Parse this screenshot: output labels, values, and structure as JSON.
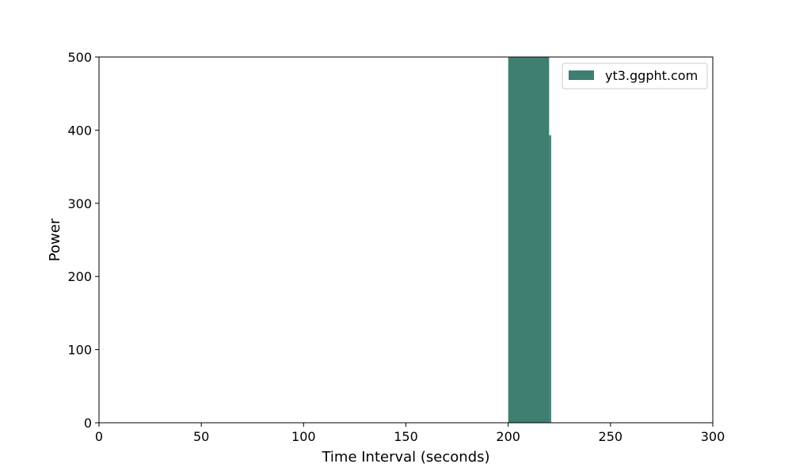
{
  "chart_data": {
    "type": "bar",
    "title": "",
    "xlabel": "Time Interval (seconds)",
    "ylabel": "Power",
    "xlim": [
      0,
      300
    ],
    "ylim": [
      0,
      500
    ],
    "xticks": [
      "0",
      "50",
      "100",
      "150",
      "200",
      "250",
      "300"
    ],
    "yticks": [
      "0",
      "100",
      "200",
      "300",
      "400",
      "500"
    ],
    "grid": false,
    "legend": {
      "position": "top-right"
    },
    "series": [
      {
        "name": "yt3.ggpht.com",
        "color": "#3f7f72",
        "bars": [
          {
            "x_start": 200,
            "x_end": 220,
            "value": 500
          },
          {
            "x_start": 220,
            "x_end": 221,
            "value": 393
          }
        ]
      }
    ]
  }
}
